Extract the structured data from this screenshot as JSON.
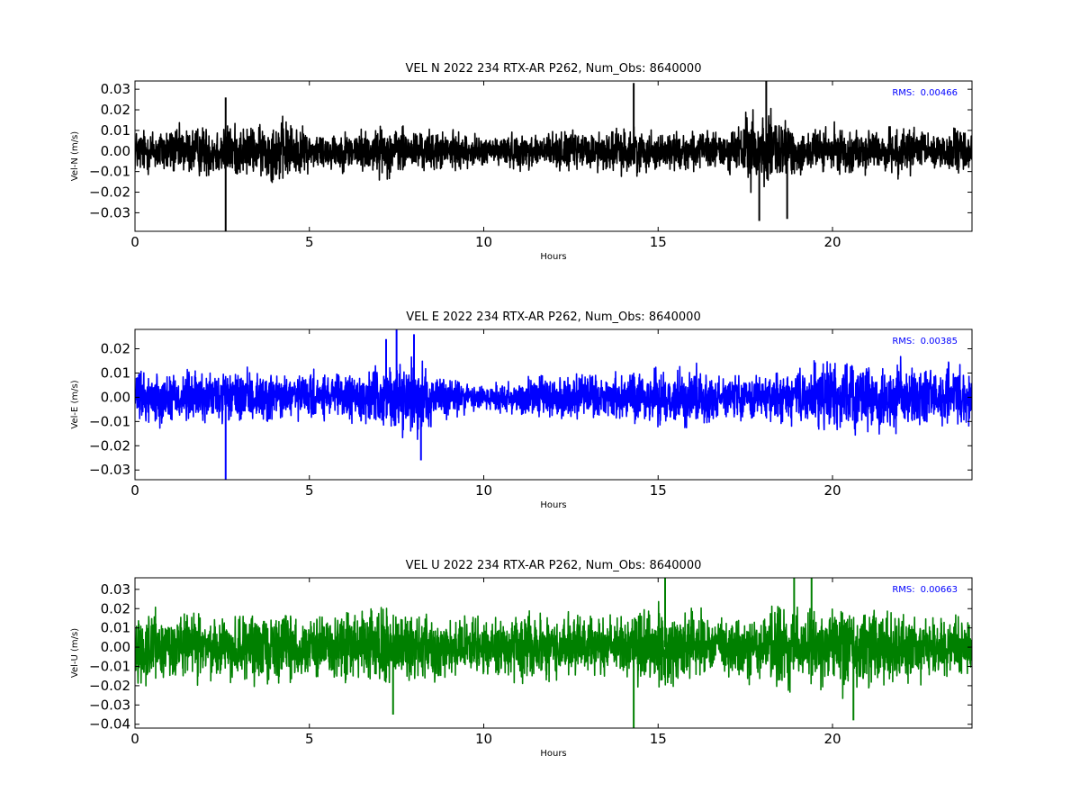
{
  "chart_data": [
    {
      "type": "line",
      "title": "VEL N 2022 234 RTX-AR  P262, Num_Obs: 8640000",
      "xlabel": "Hours",
      "ylabel": "Vel-N (m/s)",
      "xlim": [
        0,
        24
      ],
      "ylim": [
        -0.039,
        0.034
      ],
      "xticks": [
        0,
        5,
        10,
        15,
        20
      ],
      "yticks": [
        0.03,
        0.02,
        0.01,
        0.0,
        -0.01,
        -0.02,
        -0.03
      ],
      "ytick_labels": [
        "0.03",
        "0.02",
        "0.01",
        "0.00",
        "−0.01",
        "−0.02",
        "−0.03"
      ],
      "color": "#000000",
      "grid": false,
      "annotation": {
        "label": "RMS:",
        "value": "0.00466",
        "position": "top-right",
        "color": "#0000ff"
      },
      "series": [
        {
          "values": "noise",
          "envelope": {
            "hours": [
              0,
              1,
              2,
              2.6,
              3.5,
              4.2,
              5,
              6,
              7,
              7.5,
              8,
              9,
              10,
              11,
              12,
              13,
              14,
              15,
              16,
              17,
              17.5,
              18,
              18.5,
              19,
              20,
              21,
              22,
              23,
              24
            ],
            "amplitude": [
              0.014,
              0.015,
              0.016,
              0.017,
              0.015,
              0.021,
              0.012,
              0.012,
              0.015,
              0.016,
              0.013,
              0.012,
              0.009,
              0.011,
              0.012,
              0.012,
              0.015,
              0.012,
              0.012,
              0.012,
              0.023,
              0.025,
              0.021,
              0.015,
              0.014,
              0.013,
              0.014,
              0.013,
              0.014
            ]
          },
          "spikes": [
            {
              "hour": 2.6,
              "value": 0.026
            },
            {
              "hour": 2.6,
              "value": -0.039
            },
            {
              "hour": 14.3,
              "value": 0.033
            },
            {
              "hour": 18.1,
              "value": 0.034
            },
            {
              "hour": 17.9,
              "value": -0.034
            },
            {
              "hour": 18.7,
              "value": -0.033
            }
          ]
        }
      ]
    },
    {
      "type": "line",
      "title": "VEL E 2022 234 RTX-AR  P262, Num_Obs: 8640000",
      "xlabel": "Hours",
      "ylabel": "Vel-E (m/s)",
      "xlim": [
        0,
        24
      ],
      "ylim": [
        -0.034,
        0.028
      ],
      "xticks": [
        0,
        5,
        10,
        15,
        20
      ],
      "yticks": [
        0.02,
        0.01,
        0.0,
        -0.01,
        -0.02,
        -0.03
      ],
      "ytick_labels": [
        "0.02",
        "0.01",
        "0.00",
        "−0.01",
        "−0.02",
        "−0.03"
      ],
      "color": "#0000ff",
      "grid": false,
      "annotation": {
        "label": "RMS:",
        "value": "0.00385",
        "position": "top-right",
        "color": "#0000ff"
      },
      "series": [
        {
          "values": "noise",
          "envelope": {
            "hours": [
              0,
              1,
              2,
              3,
              4,
              5,
              6,
              7,
              7.5,
              8,
              9,
              10,
              11,
              12,
              13,
              14,
              15,
              16,
              17,
              18,
              19,
              19.7,
              20.5,
              21,
              22,
              23,
              24
            ],
            "amplitude": [
              0.013,
              0.014,
              0.014,
              0.013,
              0.013,
              0.012,
              0.012,
              0.015,
              0.018,
              0.019,
              0.011,
              0.007,
              0.011,
              0.012,
              0.012,
              0.013,
              0.014,
              0.015,
              0.011,
              0.012,
              0.013,
              0.019,
              0.019,
              0.018,
              0.017,
              0.015,
              0.015
            ]
          },
          "spikes": [
            {
              "hour": 2.6,
              "value": -0.034
            },
            {
              "hour": 7.5,
              "value": 0.028
            },
            {
              "hour": 8.0,
              "value": 0.026
            },
            {
              "hour": 7.2,
              "value": 0.024
            },
            {
              "hour": 8.2,
              "value": -0.026
            }
          ]
        }
      ]
    },
    {
      "type": "line",
      "title": "VEL U 2022 234 RTX-AR  P262, Num_Obs: 8640000",
      "xlabel": "Hours",
      "ylabel": "Vel-U (m/s)",
      "xlim": [
        0,
        24
      ],
      "ylim": [
        -0.042,
        0.036
      ],
      "xticks": [
        0,
        5,
        10,
        15,
        20
      ],
      "yticks": [
        0.03,
        0.02,
        0.01,
        0.0,
        -0.01,
        -0.02,
        -0.03,
        -0.04
      ],
      "ytick_labels": [
        "0.03",
        "0.02",
        "0.01",
        "0.00",
        "−0.01",
        "−0.02",
        "−0.03",
        "−0.04"
      ],
      "color": "#008000",
      "grid": false,
      "annotation": {
        "label": "RMS:",
        "value": "0.00663",
        "position": "top-right",
        "color": "#0000ff"
      },
      "series": [
        {
          "values": "noise",
          "envelope": {
            "hours": [
              0,
              1,
              2,
              3,
              4,
              5,
              6,
              7,
              8,
              9,
              10,
              11,
              12,
              13,
              14,
              15,
              16,
              17,
              18,
              19,
              20,
              20.5,
              21,
              22,
              23,
              24
            ],
            "amplitude": [
              0.022,
              0.024,
              0.02,
              0.021,
              0.022,
              0.02,
              0.022,
              0.024,
              0.022,
              0.019,
              0.018,
              0.022,
              0.02,
              0.02,
              0.022,
              0.026,
              0.022,
              0.021,
              0.025,
              0.027,
              0.025,
              0.03,
              0.026,
              0.022,
              0.02,
              0.02
            ]
          },
          "spikes": [
            {
              "hour": 14.3,
              "value": -0.042
            },
            {
              "hour": 15.2,
              "value": 0.036
            },
            {
              "hour": 18.9,
              "value": 0.036
            },
            {
              "hour": 19.4,
              "value": 0.036
            },
            {
              "hour": 20.6,
              "value": -0.038
            },
            {
              "hour": 7.4,
              "value": -0.035
            }
          ]
        }
      ]
    }
  ]
}
